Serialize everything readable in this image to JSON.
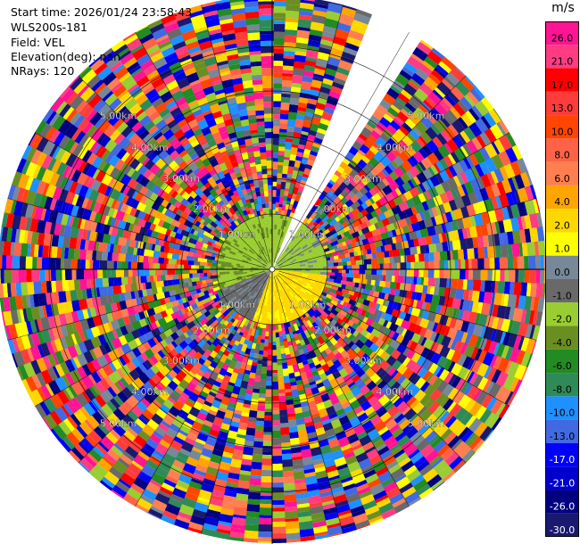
{
  "info": {
    "start_time": "Start time: 2026/01/24 23:58:43",
    "site": "WLS200s-181",
    "field": "Field: VEL",
    "elevation": "Elevation(deg): nan",
    "nrays": "NRays: 120"
  },
  "colorbar": {
    "unit": "m/s",
    "bins": [
      {
        "label": "26.0",
        "color": "#ff1493"
      },
      {
        "label": "21.0",
        "color": "#ff3c82"
      },
      {
        "label": "17.0",
        "color": "#ff0000"
      },
      {
        "label": "13.0",
        "color": "#ff3c3c"
      },
      {
        "label": "10.0",
        "color": "#ff4500"
      },
      {
        "label": "8.0",
        "color": "#ff6347"
      },
      {
        "label": "6.0",
        "color": "#ff7f50"
      },
      {
        "label": "4.0",
        "color": "#ffa500"
      },
      {
        "label": "2.0",
        "color": "#ffd700"
      },
      {
        "label": "1.0",
        "color": "#ffff00"
      },
      {
        "label": "0.0",
        "color": "#778899"
      },
      {
        "label": "-1.0",
        "color": "#696969"
      },
      {
        "label": "-2.0",
        "color": "#9acd32"
      },
      {
        "label": "-4.0",
        "color": "#6b8e23"
      },
      {
        "label": "-6.0",
        "color": "#228b22"
      },
      {
        "label": "-8.0",
        "color": "#2e8b57"
      },
      {
        "label": "-10.0",
        "color": "#1e90ff"
      },
      {
        "label": "-13.0",
        "color": "#4169e1"
      },
      {
        "label": "-17.0",
        "color": "#0000ff"
      },
      {
        "label": "-21.0",
        "color": "#0000cd"
      },
      {
        "label": "-26.0",
        "color": "#000080"
      },
      {
        "label": "-30.0",
        "color": "#191970"
      }
    ]
  },
  "chart_data": {
    "type": "heatmap",
    "field": "VEL",
    "nrays": 120,
    "missing_sector_deg": [
      20,
      33
    ],
    "range_ring_labels": [
      "1.00km",
      "2.00km",
      "3.00km",
      "4.00km",
      "5.00km"
    ],
    "zlim": [
      -30.0,
      26.0
    ]
  }
}
